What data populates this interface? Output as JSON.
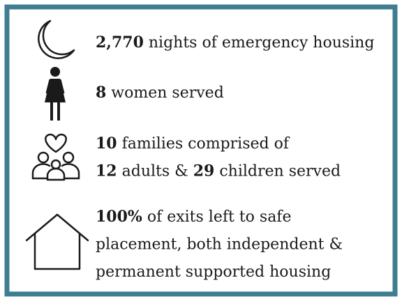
{
  "items": [
    {
      "lines": [
        [
          {
            "text": "2,770",
            "bold": true
          },
          {
            "text": " nights of emergency housing",
            "bold": false
          }
        ]
      ]
    },
    {
      "lines": [
        [
          {
            "text": "8",
            "bold": true
          },
          {
            "text": " women served",
            "bold": false
          }
        ]
      ]
    },
    {
      "lines": [
        [
          {
            "text": "10",
            "bold": true
          },
          {
            "text": " families comprised of",
            "bold": false
          }
        ],
        [
          {
            "text": "12",
            "bold": true
          },
          {
            "text": " adults & ",
            "bold": false
          },
          {
            "text": "29",
            "bold": true
          },
          {
            "text": " children served",
            "bold": false
          }
        ]
      ]
    },
    {
      "lines": [
        [
          {
            "text": "100%",
            "bold": true
          },
          {
            "text": " of exits left to safe",
            "bold": false
          }
        ],
        [
          {
            "text": "placement, both independent &",
            "bold": false
          }
        ],
        [
          {
            "text": "permanent supported housing",
            "bold": false
          }
        ]
      ]
    }
  ]
}
